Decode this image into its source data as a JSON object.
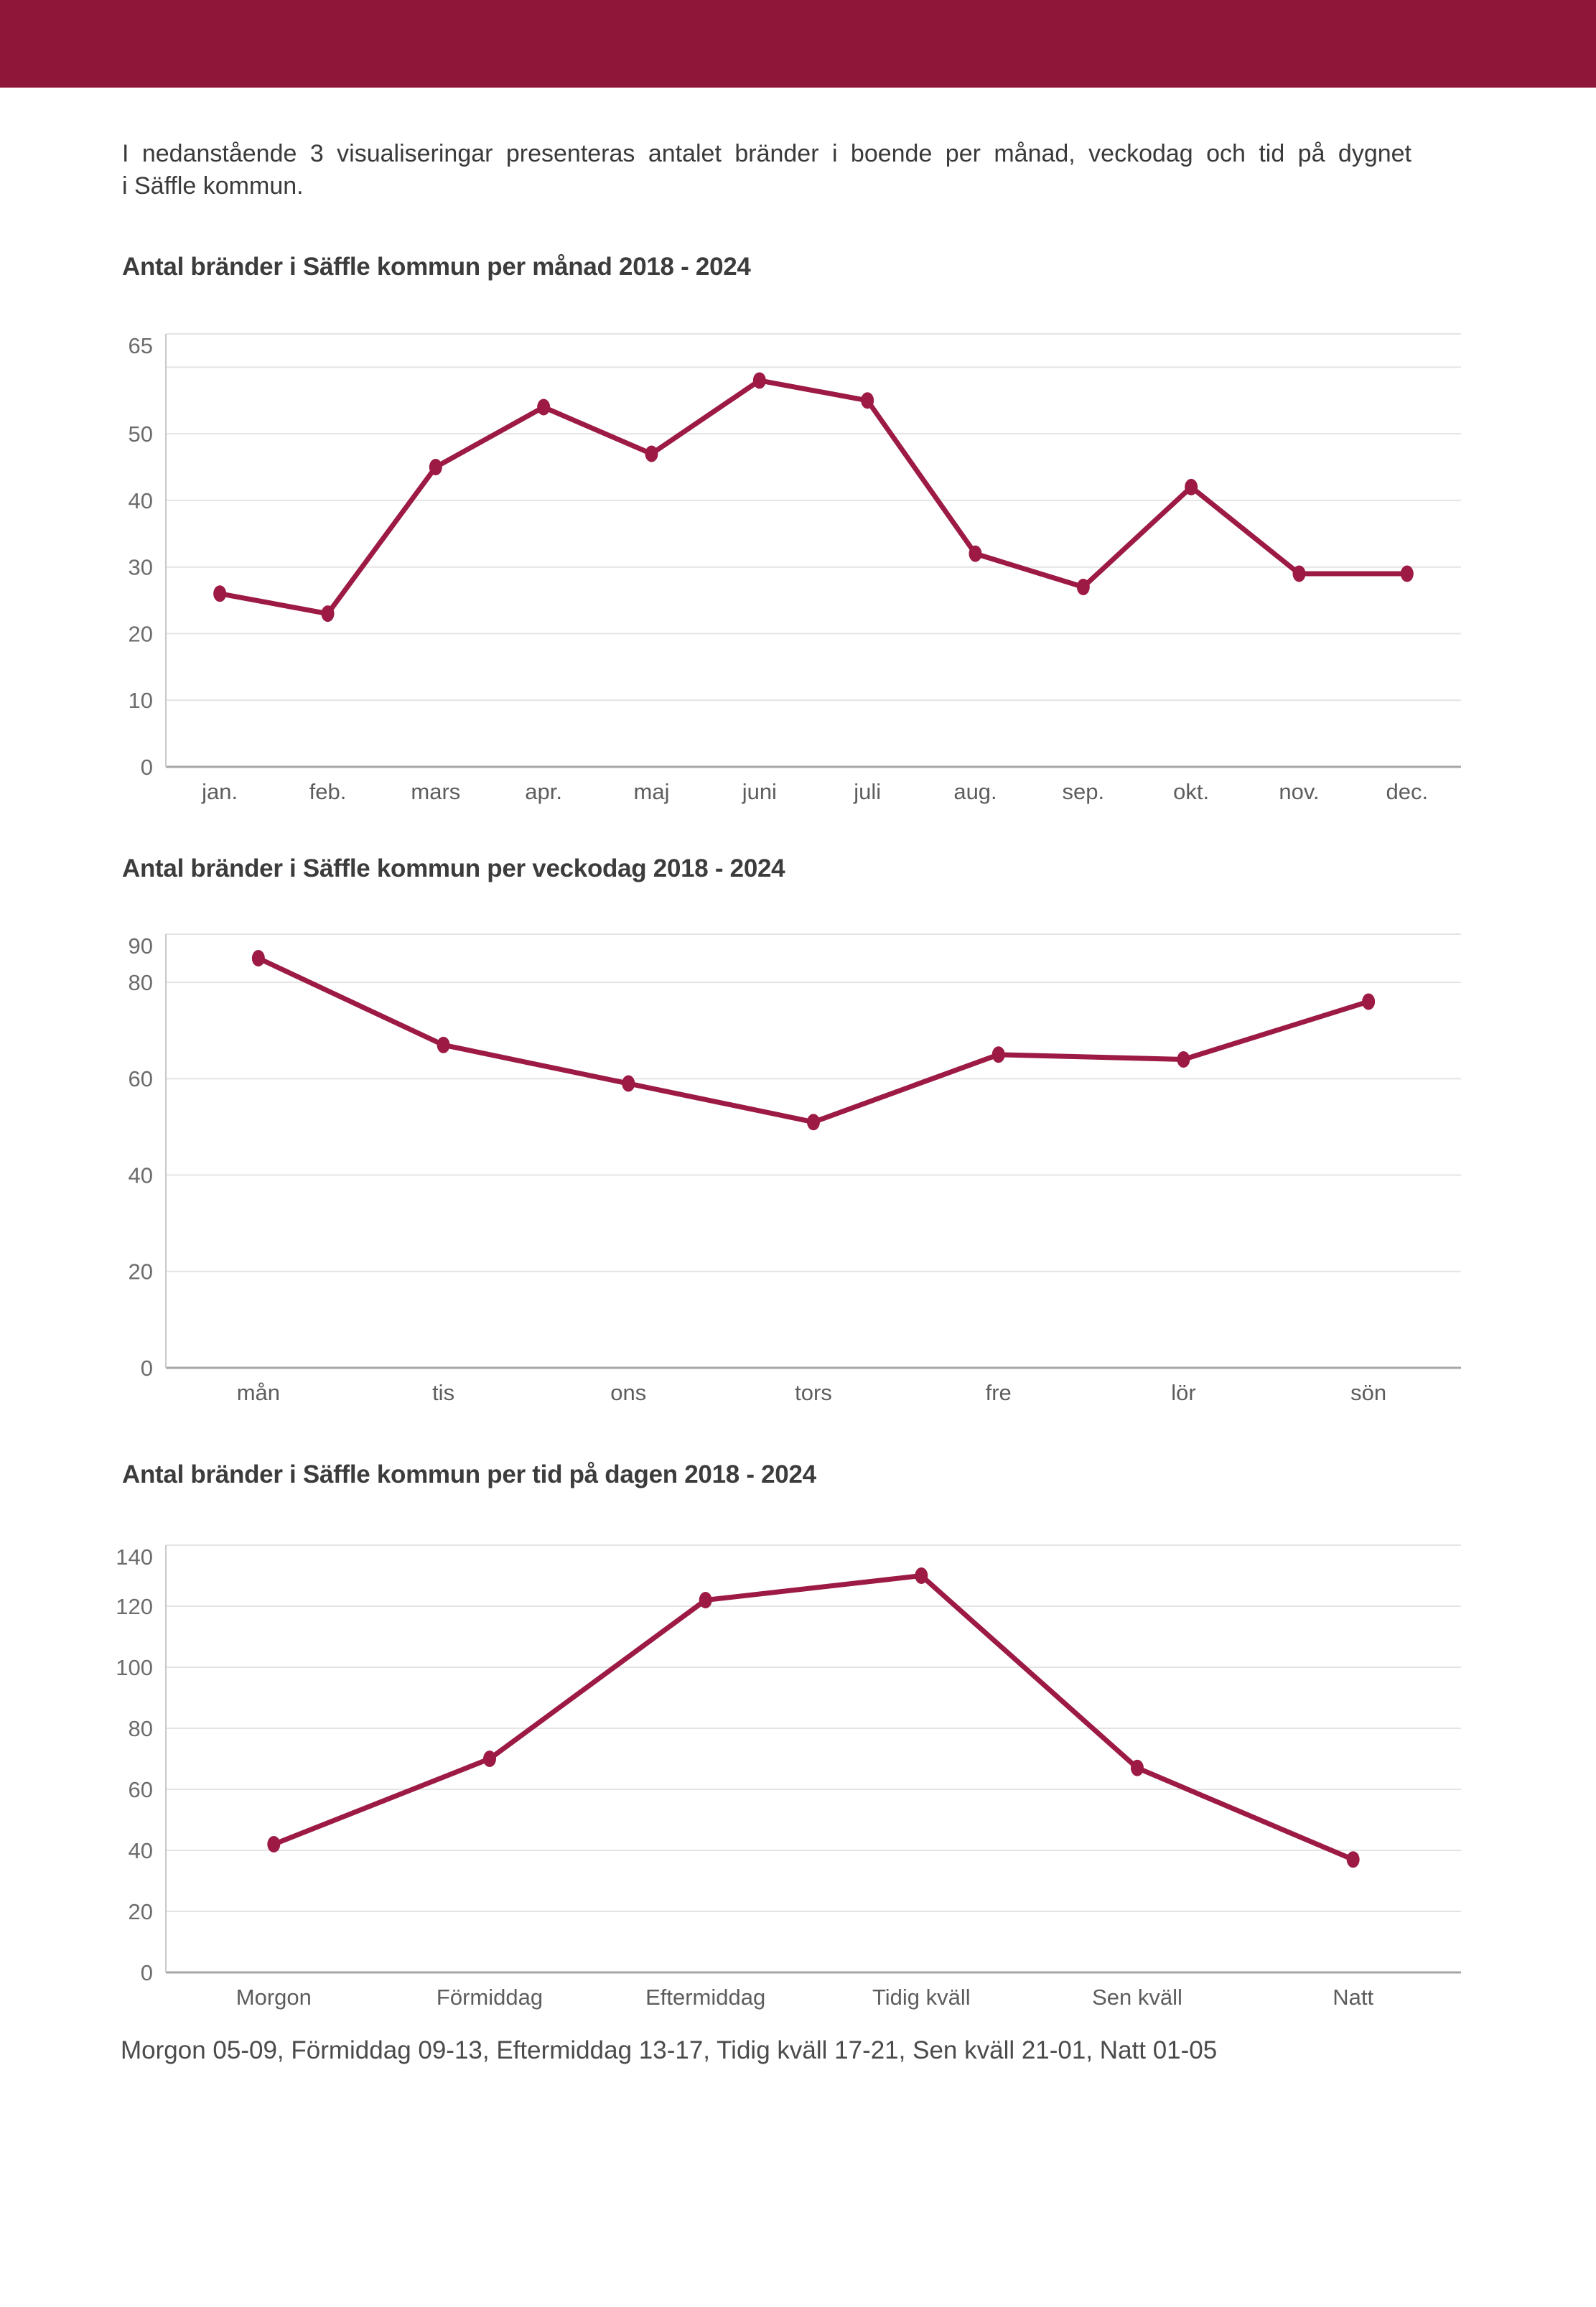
{
  "page": {
    "header_color": "#8f1539",
    "accent_color": "#9c1a44",
    "background": "#ffffff"
  },
  "intro": {
    "line1": "I nedanstående 3 visualiseringar presenteras antalet bränder i boende per månad, veckodag och tid på dygnet",
    "line2": "i Säffle kommun."
  },
  "chart_data": [
    {
      "type": "line",
      "title": "Antal bränder i Säffle kommun per månad 2018 - 2024",
      "categories": [
        "jan.",
        "feb.",
        "mars",
        "apr.",
        "maj",
        "juni",
        "juli",
        "aug.",
        "sep.",
        "okt.",
        "nov.",
        "dec."
      ],
      "values": [
        26,
        23,
        45,
        54,
        47,
        58,
        55,
        32,
        27,
        42,
        29,
        29
      ],
      "xlabel": "",
      "ylabel": "",
      "ylim": [
        0,
        65
      ],
      "grid": true,
      "legend": "none",
      "color": "#9c1a44",
      "yticks": [
        {
          "v": 0,
          "label": "0"
        },
        {
          "v": 10,
          "label": "10"
        },
        {
          "v": 20,
          "label": "20"
        },
        {
          "v": 30,
          "label": "30"
        },
        {
          "v": 40,
          "label": "40"
        },
        {
          "v": 50,
          "label": "50"
        },
        {
          "v": 60,
          "label": ""
        },
        {
          "v": 65,
          "label": "65"
        }
      ]
    },
    {
      "type": "line",
      "title": "Antal bränder i Säffle kommun per veckodag 2018 - 2024",
      "categories": [
        "mån",
        "tis",
        "ons",
        "tors",
        "fre",
        "lör",
        "sön"
      ],
      "values": [
        85,
        67,
        59,
        51,
        65,
        64,
        76
      ],
      "xlabel": "",
      "ylabel": "",
      "ylim": [
        0,
        90
      ],
      "grid": true,
      "legend": "none",
      "color": "#9c1a44",
      "yticks": [
        {
          "v": 0,
          "label": "0"
        },
        {
          "v": 20,
          "label": "20"
        },
        {
          "v": 40,
          "label": "40"
        },
        {
          "v": 60,
          "label": "60"
        },
        {
          "v": 80,
          "label": "80"
        },
        {
          "v": 90,
          "label": "90"
        }
      ]
    },
    {
      "type": "line",
      "title": "Antal bränder i Säffle kommun per tid på dagen 2018 - 2024",
      "categories": [
        "Morgon",
        "Förmiddag",
        "Eftermiddag",
        "Tidig kväll",
        "Sen kväll",
        "Natt"
      ],
      "values": [
        42,
        70,
        122,
        130,
        67,
        37
      ],
      "xlabel": "",
      "ylabel": "",
      "ylim": [
        0,
        140
      ],
      "grid": true,
      "legend": "none",
      "color": "#9c1a44",
      "yticks": [
        {
          "v": 0,
          "label": "0"
        },
        {
          "v": 20,
          "label": "20"
        },
        {
          "v": 40,
          "label": "40"
        },
        {
          "v": 60,
          "label": "60"
        },
        {
          "v": 80,
          "label": "80"
        },
        {
          "v": 100,
          "label": "100"
        },
        {
          "v": 120,
          "label": "120"
        },
        {
          "v": 140,
          "label": "140"
        }
      ]
    }
  ],
  "footnote": "Morgon 05-09, Förmiddag 09-13, Eftermiddag 13-17, Tidig kväll 17-21, Sen kväll 21-01, Natt 01-05"
}
